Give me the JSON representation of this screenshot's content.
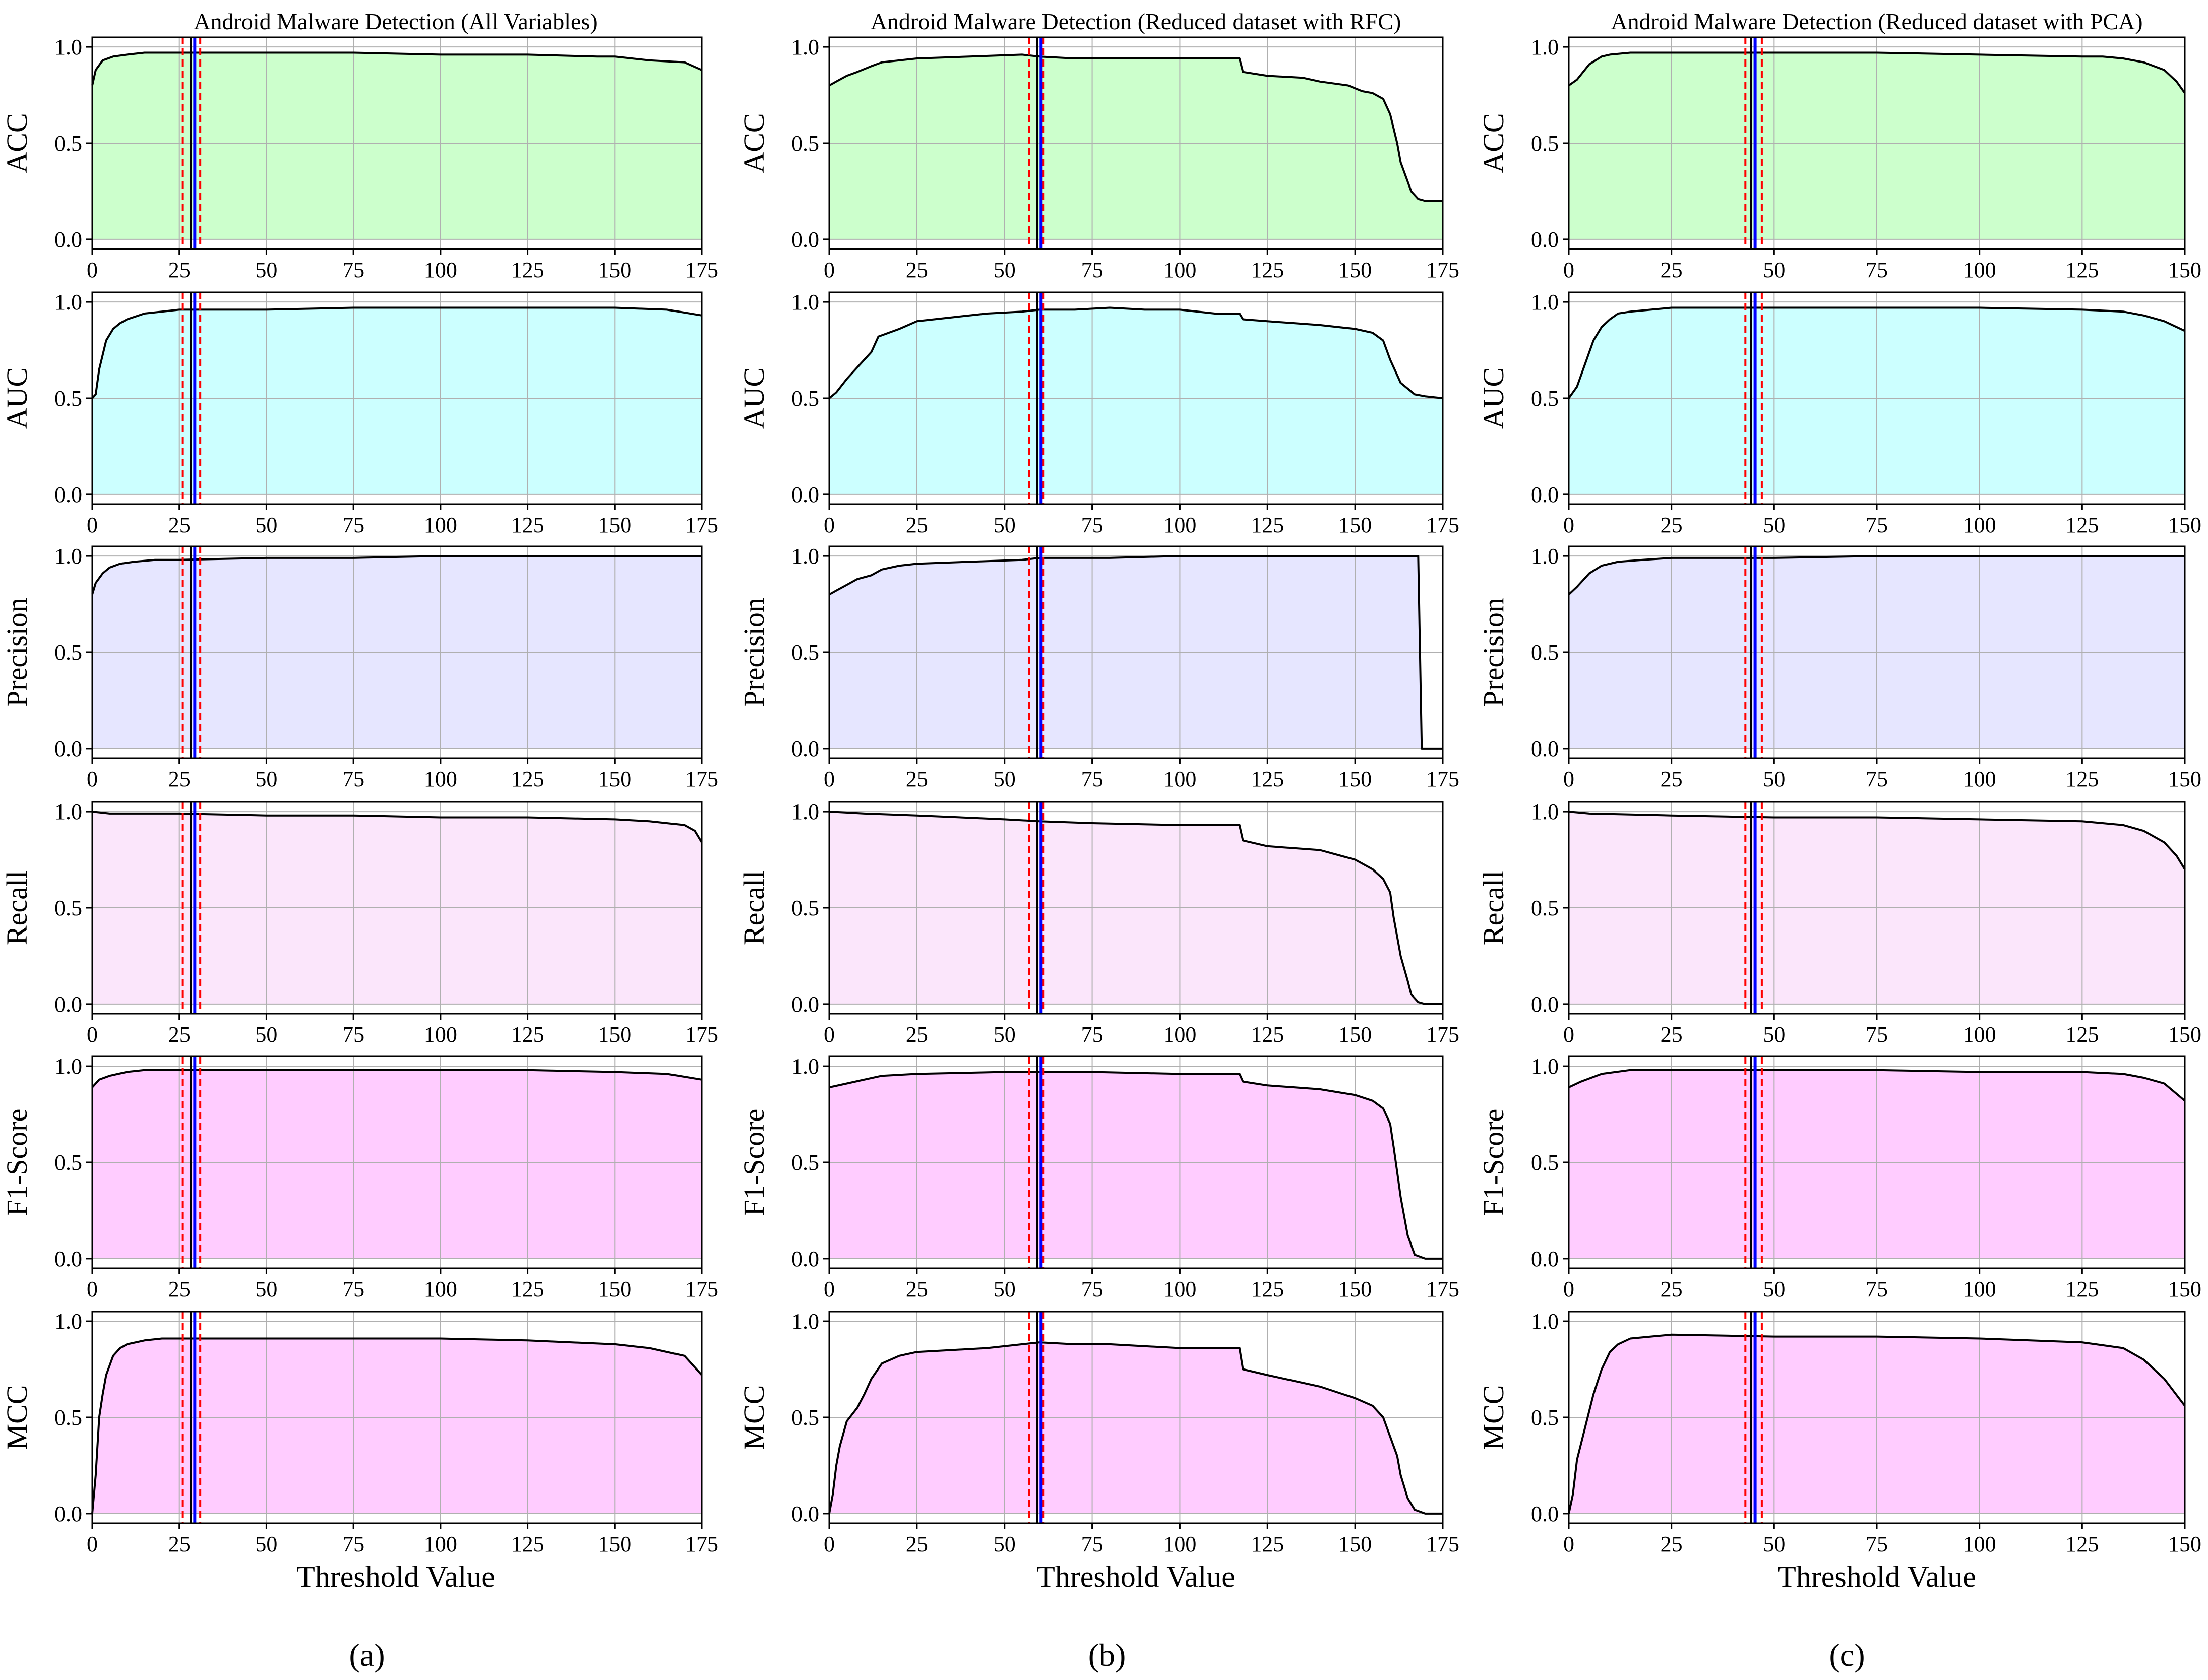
{
  "panel_labels": [
    "(a)",
    "(b)",
    "(c)"
  ],
  "colors": {
    "ACC": "#ccffcc",
    "AUC": "#ccffff",
    "Precision": "#e6e6ff",
    "Recall": "#fbe6fb",
    "F1-Score": "#ffccff",
    "MCC": "#ffccff",
    "curve": "#000000",
    "center_line": "#0000ff",
    "bound_lines": "#ff0000",
    "grid": "#b0b0b0"
  },
  "chart_data": [
    {
      "type": "area",
      "panel": "(a)",
      "title": "Android Malware Detection (All Variables)",
      "xlabel": "Threshold Value",
      "xlim": [
        0,
        175
      ],
      "xticks": [
        0,
        25,
        50,
        75,
        100,
        125,
        150,
        175
      ],
      "ylim": [
        -0.05,
        1.05
      ],
      "yticks": [
        0.0,
        0.5,
        1.0
      ],
      "grid": true,
      "vertical_lines": {
        "center": 29,
        "lower": 26,
        "upper": 31
      },
      "series": [
        {
          "name": "ACC",
          "x": [
            0,
            1,
            3,
            6,
            10,
            15,
            20,
            25,
            50,
            75,
            100,
            125,
            145,
            150,
            160,
            170,
            175
          ],
          "values": [
            0.8,
            0.88,
            0.93,
            0.95,
            0.96,
            0.97,
            0.97,
            0.97,
            0.97,
            0.97,
            0.96,
            0.96,
            0.95,
            0.95,
            0.93,
            0.92,
            0.88
          ]
        },
        {
          "name": "AUC",
          "x": [
            0,
            1,
            2,
            4,
            6,
            8,
            10,
            15,
            20,
            25,
            50,
            75,
            100,
            125,
            150,
            165,
            175
          ],
          "values": [
            0.5,
            0.52,
            0.65,
            0.8,
            0.86,
            0.89,
            0.91,
            0.94,
            0.95,
            0.96,
            0.96,
            0.97,
            0.97,
            0.97,
            0.97,
            0.96,
            0.93
          ]
        },
        {
          "name": "Precision",
          "x": [
            0,
            1,
            3,
            5,
            8,
            12,
            18,
            25,
            50,
            75,
            100,
            125,
            150,
            175
          ],
          "values": [
            0.8,
            0.86,
            0.91,
            0.94,
            0.96,
            0.97,
            0.98,
            0.98,
            0.99,
            0.99,
            1.0,
            1.0,
            1.0,
            1.0
          ]
        },
        {
          "name": "Recall",
          "x": [
            0,
            5,
            25,
            50,
            75,
            100,
            125,
            150,
            160,
            170,
            173,
            175
          ],
          "values": [
            1.0,
            0.99,
            0.99,
            0.98,
            0.98,
            0.97,
            0.97,
            0.96,
            0.95,
            0.93,
            0.9,
            0.84
          ]
        },
        {
          "name": "F1-Score",
          "x": [
            0,
            2,
            5,
            10,
            15,
            20,
            25,
            50,
            75,
            100,
            125,
            150,
            165,
            175
          ],
          "values": [
            0.89,
            0.93,
            0.95,
            0.97,
            0.98,
            0.98,
            0.98,
            0.98,
            0.98,
            0.98,
            0.98,
            0.97,
            0.96,
            0.93
          ]
        },
        {
          "name": "MCC",
          "x": [
            0,
            1,
            2,
            3,
            4,
            6,
            8,
            10,
            15,
            20,
            25,
            50,
            75,
            100,
            125,
            150,
            160,
            170,
            175
          ],
          "values": [
            0.0,
            0.2,
            0.5,
            0.62,
            0.72,
            0.82,
            0.86,
            0.88,
            0.9,
            0.91,
            0.91,
            0.91,
            0.91,
            0.91,
            0.9,
            0.88,
            0.86,
            0.82,
            0.72
          ]
        }
      ]
    },
    {
      "type": "area",
      "panel": "(b)",
      "title": "Android Malware Detection (Reduced dataset with RFC)",
      "xlabel": "Threshold Value",
      "xlim": [
        0,
        175
      ],
      "xticks": [
        0,
        25,
        50,
        75,
        100,
        125,
        150,
        175
      ],
      "ylim": [
        -0.05,
        1.05
      ],
      "yticks": [
        0.0,
        0.5,
        1.0
      ],
      "grid": true,
      "vertical_lines": {
        "center": 60,
        "lower": 57,
        "upper": 61
      },
      "series": [
        {
          "name": "ACC",
          "x": [
            0,
            2,
            5,
            8,
            12,
            15,
            20,
            25,
            40,
            55,
            60,
            70,
            80,
            100,
            117,
            118,
            125,
            135,
            140,
            148,
            152,
            155,
            158,
            160,
            162,
            163,
            165,
            166,
            168,
            170,
            175
          ],
          "values": [
            0.8,
            0.82,
            0.85,
            0.87,
            0.9,
            0.92,
            0.93,
            0.94,
            0.95,
            0.96,
            0.95,
            0.94,
            0.94,
            0.94,
            0.94,
            0.87,
            0.85,
            0.84,
            0.82,
            0.8,
            0.77,
            0.76,
            0.73,
            0.65,
            0.5,
            0.4,
            0.3,
            0.25,
            0.21,
            0.2,
            0.2
          ]
        },
        {
          "name": "AUC",
          "x": [
            0,
            2,
            5,
            8,
            12,
            14,
            20,
            25,
            35,
            45,
            55,
            60,
            70,
            80,
            90,
            100,
            110,
            117,
            118,
            125,
            140,
            150,
            155,
            158,
            160,
            162,
            163,
            165,
            167,
            170,
            175
          ],
          "values": [
            0.5,
            0.53,
            0.6,
            0.66,
            0.74,
            0.82,
            0.86,
            0.9,
            0.92,
            0.94,
            0.95,
            0.96,
            0.96,
            0.97,
            0.96,
            0.96,
            0.94,
            0.94,
            0.91,
            0.9,
            0.88,
            0.86,
            0.84,
            0.8,
            0.7,
            0.62,
            0.58,
            0.55,
            0.52,
            0.51,
            0.5
          ]
        },
        {
          "name": "Precision",
          "x": [
            0,
            2,
            5,
            8,
            12,
            15,
            20,
            25,
            40,
            55,
            60,
            80,
            100,
            125,
            150,
            168,
            169,
            170,
            175
          ],
          "values": [
            0.8,
            0.82,
            0.85,
            0.88,
            0.9,
            0.93,
            0.95,
            0.96,
            0.97,
            0.98,
            0.99,
            0.99,
            1.0,
            1.0,
            1.0,
            1.0,
            0.0,
            0.0,
            0.0
          ]
        },
        {
          "name": "Recall",
          "x": [
            0,
            10,
            25,
            50,
            60,
            75,
            100,
            117,
            118,
            125,
            140,
            150,
            155,
            158,
            160,
            161,
            162,
            163,
            165,
            166,
            168,
            170,
            175
          ],
          "values": [
            1.0,
            0.99,
            0.98,
            0.96,
            0.95,
            0.94,
            0.93,
            0.93,
            0.85,
            0.82,
            0.8,
            0.75,
            0.7,
            0.65,
            0.58,
            0.45,
            0.35,
            0.25,
            0.12,
            0.05,
            0.01,
            0.0,
            0.0
          ]
        },
        {
          "name": "F1-Score",
          "x": [
            0,
            5,
            10,
            15,
            25,
            50,
            60,
            75,
            100,
            117,
            118,
            125,
            140,
            150,
            155,
            158,
            160,
            161,
            162,
            163,
            165,
            167,
            170,
            175
          ],
          "values": [
            0.89,
            0.91,
            0.93,
            0.95,
            0.96,
            0.97,
            0.97,
            0.97,
            0.96,
            0.96,
            0.92,
            0.9,
            0.88,
            0.85,
            0.82,
            0.78,
            0.7,
            0.58,
            0.45,
            0.32,
            0.12,
            0.02,
            0.0,
            0.0
          ]
        },
        {
          "name": "MCC",
          "x": [
            0,
            1,
            2,
            3,
            5,
            8,
            10,
            12,
            15,
            20,
            25,
            35,
            45,
            55,
            60,
            70,
            80,
            90,
            100,
            110,
            117,
            118,
            125,
            140,
            150,
            155,
            158,
            160,
            162,
            163,
            165,
            167,
            170,
            175
          ],
          "values": [
            0.0,
            0.1,
            0.25,
            0.35,
            0.48,
            0.55,
            0.62,
            0.7,
            0.78,
            0.82,
            0.84,
            0.85,
            0.86,
            0.88,
            0.89,
            0.88,
            0.88,
            0.87,
            0.86,
            0.86,
            0.86,
            0.75,
            0.72,
            0.66,
            0.6,
            0.56,
            0.5,
            0.4,
            0.3,
            0.2,
            0.08,
            0.02,
            0.0,
            0.0
          ]
        }
      ]
    },
    {
      "type": "area",
      "panel": "(c)",
      "title": "Android Malware Detection (Reduced dataset with PCA)",
      "xlabel": "Threshold Value",
      "xlim": [
        0,
        150
      ],
      "xticks": [
        0,
        25,
        50,
        75,
        100,
        125,
        150
      ],
      "ylim": [
        -0.05,
        1.05
      ],
      "yticks": [
        0.0,
        0.5,
        1.0
      ],
      "grid": true,
      "vertical_lines": {
        "center": 45,
        "lower": 43,
        "upper": 47
      },
      "series": [
        {
          "name": "ACC",
          "x": [
            0,
            2,
            5,
            8,
            10,
            15,
            20,
            25,
            50,
            75,
            100,
            125,
            130,
            135,
            140,
            145,
            148,
            150
          ],
          "values": [
            0.8,
            0.83,
            0.91,
            0.95,
            0.96,
            0.97,
            0.97,
            0.97,
            0.97,
            0.97,
            0.96,
            0.95,
            0.95,
            0.94,
            0.92,
            0.88,
            0.82,
            0.76
          ]
        },
        {
          "name": "AUC",
          "x": [
            0,
            2,
            4,
            6,
            8,
            10,
            12,
            15,
            20,
            25,
            50,
            75,
            100,
            125,
            135,
            140,
            145,
            150
          ],
          "values": [
            0.5,
            0.56,
            0.68,
            0.8,
            0.87,
            0.91,
            0.94,
            0.95,
            0.96,
            0.97,
            0.97,
            0.97,
            0.97,
            0.96,
            0.95,
            0.93,
            0.9,
            0.85
          ]
        },
        {
          "name": "Precision",
          "x": [
            0,
            2,
            5,
            8,
            12,
            18,
            25,
            50,
            75,
            100,
            125,
            150
          ],
          "values": [
            0.8,
            0.84,
            0.91,
            0.95,
            0.97,
            0.98,
            0.99,
            0.99,
            1.0,
            1.0,
            1.0,
            1.0
          ]
        },
        {
          "name": "Recall",
          "x": [
            0,
            5,
            25,
            50,
            75,
            100,
            125,
            130,
            135,
            140,
            145,
            148,
            150
          ],
          "values": [
            1.0,
            0.99,
            0.98,
            0.97,
            0.97,
            0.96,
            0.95,
            0.94,
            0.93,
            0.9,
            0.84,
            0.77,
            0.7
          ]
        },
        {
          "name": "F1-Score",
          "x": [
            0,
            3,
            8,
            15,
            25,
            50,
            75,
            100,
            125,
            135,
            140,
            145,
            150
          ],
          "values": [
            0.89,
            0.92,
            0.96,
            0.98,
            0.98,
            0.98,
            0.98,
            0.97,
            0.97,
            0.96,
            0.94,
            0.91,
            0.82
          ]
        },
        {
          "name": "MCC",
          "x": [
            0,
            1,
            2,
            4,
            6,
            8,
            10,
            12,
            15,
            20,
            25,
            50,
            75,
            100,
            125,
            135,
            140,
            145,
            150
          ],
          "values": [
            0.0,
            0.1,
            0.28,
            0.45,
            0.62,
            0.75,
            0.84,
            0.88,
            0.91,
            0.92,
            0.93,
            0.92,
            0.92,
            0.91,
            0.89,
            0.86,
            0.8,
            0.7,
            0.56
          ]
        }
      ]
    }
  ]
}
